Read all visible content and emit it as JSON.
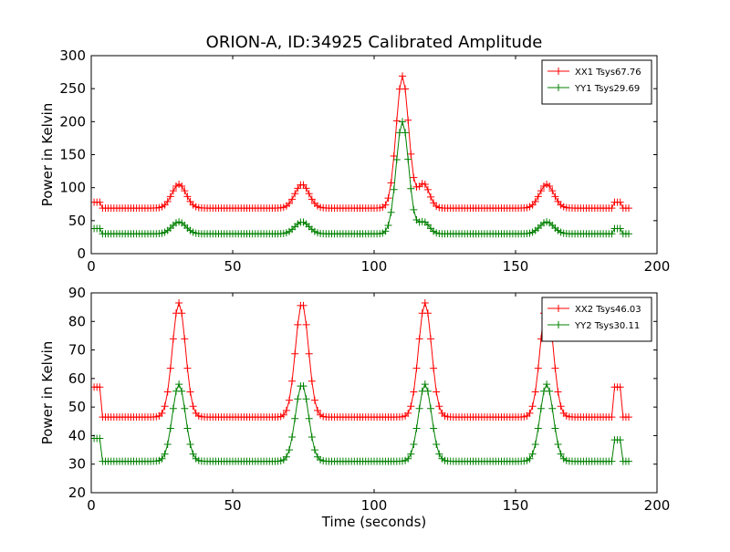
{
  "chart_data": [
    {
      "type": "line",
      "title": "ORION-A, ID:34925 Calibrated Amplitude",
      "xlabel": "",
      "ylabel": "Power in Kelvin",
      "xlim": [
        0,
        200
      ],
      "ylim": [
        0,
        300
      ],
      "xticks": [
        "0",
        "50",
        "100",
        "150",
        "200"
      ],
      "yticks": [
        "0",
        "50",
        "100",
        "150",
        "200",
        "250",
        "300"
      ],
      "grid": false,
      "legend": "top-right",
      "marker": "+",
      "x_range": [
        1,
        190
      ],
      "sample_step": 1,
      "series": [
        {
          "name": "XX1 Tsys67.76",
          "color": "#ff0000",
          "baseline": 69,
          "segments": [
            {
              "x0": 1,
              "x1": 3,
              "v": 78
            },
            {
              "x0": 185,
              "x1": 187,
              "v": 78
            }
          ],
          "peaks": [
            {
              "x": 31,
              "amp": 36,
              "width": 2.5
            },
            {
              "x": 74.5,
              "amp": 36,
              "width": 2.5
            },
            {
              "x": 110,
              "amp": 200,
              "width": 2.2
            },
            {
              "x": 117.5,
              "amp": 37,
              "width": 2.0
            },
            {
              "x": 161,
              "amp": 36,
              "width": 2.5
            }
          ]
        },
        {
          "name": "YY1 Tsys29.69",
          "color": "#008000",
          "baseline": 30,
          "segments": [
            {
              "x0": 1,
              "x1": 3,
              "v": 38
            },
            {
              "x0": 185,
              "x1": 187,
              "v": 38
            }
          ],
          "peaks": [
            {
              "x": 31,
              "amp": 18,
              "width": 2.5
            },
            {
              "x": 74.5,
              "amp": 18,
              "width": 2.5
            },
            {
              "x": 110,
              "amp": 170,
              "width": 2.2
            },
            {
              "x": 117.5,
              "amp": 18,
              "width": 2.0
            },
            {
              "x": 161,
              "amp": 18,
              "width": 2.5
            }
          ]
        }
      ]
    },
    {
      "type": "line",
      "title": "",
      "xlabel": "Time (seconds)",
      "ylabel": "Power in Kelvin",
      "xlim": [
        0,
        200
      ],
      "ylim": [
        20,
        90
      ],
      "xticks": [
        "0",
        "50",
        "100",
        "150",
        "200"
      ],
      "yticks": [
        "20",
        "30",
        "40",
        "50",
        "60",
        "70",
        "80",
        "90"
      ],
      "grid": false,
      "legend": "top-right",
      "marker": "+",
      "x_range": [
        1,
        190
      ],
      "sample_step": 1,
      "series": [
        {
          "name": "XX2 Tsys46.03",
          "color": "#ff0000",
          "baseline": 46.5,
          "segments": [
            {
              "x0": 1,
              "x1": 3,
              "v": 57
            },
            {
              "x0": 185,
              "x1": 187,
              "v": 57
            }
          ],
          "peaks": [
            {
              "x": 31,
              "amp": 40,
              "width": 2.3
            },
            {
              "x": 74.5,
              "amp": 40,
              "width": 2.3
            },
            {
              "x": 118,
              "amp": 40,
              "width": 2.3
            },
            {
              "x": 161,
              "amp": 40,
              "width": 2.3
            }
          ]
        },
        {
          "name": "YY2 Tsys30.11",
          "color": "#008000",
          "baseline": 31,
          "segments": [
            {
              "x0": 1,
              "x1": 3,
              "v": 39
            },
            {
              "x0": 185,
              "x1": 187,
              "v": 38.5
            }
          ],
          "peaks": [
            {
              "x": 31,
              "amp": 27,
              "width": 2.3
            },
            {
              "x": 74.5,
              "amp": 27,
              "width": 2.3
            },
            {
              "x": 118,
              "amp": 27,
              "width": 2.3
            },
            {
              "x": 161,
              "amp": 27,
              "width": 2.3
            }
          ]
        }
      ]
    }
  ]
}
